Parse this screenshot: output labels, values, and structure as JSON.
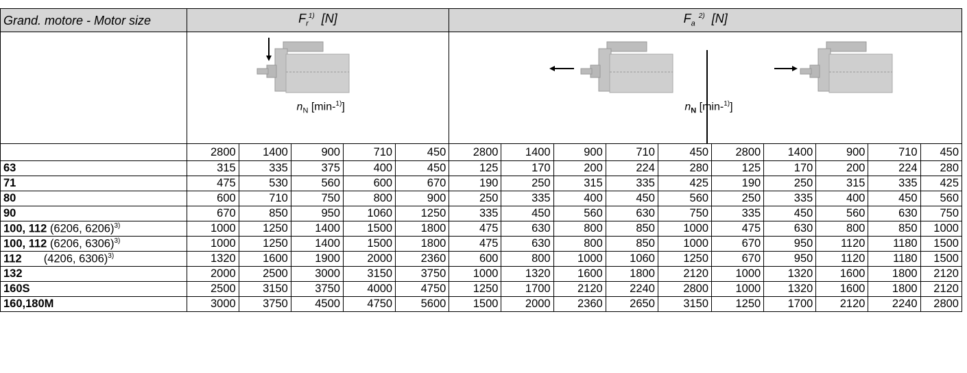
{
  "header": {
    "motor_size": "Grand.  motore  - Motor size",
    "fr_symbol": "F",
    "fr_sub": "r",
    "fr_sup": "1)",
    "fr_unit": "[N]",
    "fa_symbol": "F",
    "fa_sub": "a",
    "fa_sup": "2)",
    "fa_unit": "[N]"
  },
  "speed_label": {
    "n_symbol": "n",
    "n_sub": "N",
    "unit": "[min-",
    "unit_sup": "1)",
    "close": "]"
  },
  "speeds": [
    "2800",
    "1400",
    "900",
    "710",
    "450",
    "2800",
    "1400",
    "900",
    "710",
    "450",
    "2800",
    "1400",
    "900",
    "710",
    "450"
  ],
  "rows": [
    {
      "size": "63",
      "note": "",
      "values": [
        "315",
        "335",
        "375",
        "400",
        "450",
        "125",
        "170",
        "200",
        "224",
        "280",
        "125",
        "170",
        "200",
        "224",
        "280"
      ]
    },
    {
      "size": "71",
      "note": "",
      "values": [
        "475",
        "530",
        "560",
        "600",
        "670",
        "190",
        "250",
        "315",
        "335",
        "425",
        "190",
        "250",
        "315",
        "335",
        "425"
      ]
    },
    {
      "size": "80",
      "note": "",
      "values": [
        "600",
        "710",
        "750",
        "800",
        "900",
        "250",
        "335",
        "400",
        "450",
        "560",
        "250",
        "335",
        "400",
        "450",
        "560"
      ]
    },
    {
      "size": "90",
      "note": "",
      "values": [
        "670",
        "850",
        "950",
        "1060",
        "1250",
        "335",
        "450",
        "560",
        "630",
        "750",
        "335",
        "450",
        "560",
        "630",
        "750"
      ]
    },
    {
      "size": "100, 112",
      "note": " (6206, 6206)",
      "note_sup": "3)",
      "values": [
        "1000",
        "1250",
        "1400",
        "1500",
        "1800",
        "475",
        "630",
        "800",
        "850",
        "1000",
        "475",
        "630",
        "800",
        "850",
        "1000"
      ]
    },
    {
      "size": "100, 112",
      "note": " (6206, 6306)",
      "note_sup": "3)",
      "values": [
        "1000",
        "1250",
        "1400",
        "1500",
        "1800",
        "475",
        "630",
        "800",
        "850",
        "1000",
        "670",
        "950",
        "1120",
        "1180",
        "1500"
      ]
    },
    {
      "size": "112",
      "note": "       (4206, 6306)",
      "note_sup": "3)",
      "values": [
        "1320",
        "1600",
        "1900",
        "2000",
        "2360",
        "600",
        "800",
        "1000",
        "1060",
        "1250",
        "670",
        "950",
        "1120",
        "1180",
        "1500"
      ]
    },
    {
      "size": "132",
      "note": "",
      "values": [
        "2000",
        "2500",
        "3000",
        "3150",
        "3750",
        "1000",
        "1320",
        "1600",
        "1800",
        "2120",
        "1000",
        "1320",
        "1600",
        "1800",
        "2120"
      ]
    },
    {
      "size": "160S",
      "note": "",
      "values": [
        "2500",
        "3150",
        "3750",
        "4000",
        "4750",
        "1250",
        "1700",
        "2120",
        "2240",
        "2800",
        "1000",
        "1320",
        "1600",
        "1800",
        "2120"
      ]
    },
    {
      "size": "160,180M",
      "note": "",
      "values": [
        "3000",
        "3750",
        "4500",
        "4750",
        "5600",
        "1500",
        "2000",
        "2360",
        "2650",
        "3150",
        "1250",
        "1700",
        "2120",
        "2240",
        "2800"
      ]
    }
  ],
  "icons": [
    "motor-radial-load-icon",
    "motor-axial-load-left-icon",
    "motor-axial-load-right-icon"
  ]
}
